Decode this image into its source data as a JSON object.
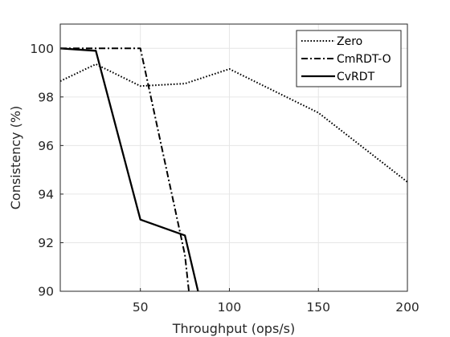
{
  "chart_data": {
    "type": "line",
    "title": "",
    "xlabel": "Throughput (ops/s)",
    "ylabel": "Consistency (%)",
    "xlim": [
      5,
      200
    ],
    "ylim": [
      90,
      101
    ],
    "xticks": [
      50,
      100,
      150,
      200
    ],
    "yticks": [
      90,
      92,
      94,
      96,
      98,
      100
    ],
    "grid": true,
    "legend_position": "top-right",
    "series": [
      {
        "name": "Zero",
        "style": "dotted",
        "color": "#000000",
        "x": [
          5,
          25,
          50,
          75,
          100,
          150,
          200
        ],
        "y": [
          98.65,
          99.35,
          98.45,
          98.55,
          99.15,
          97.35,
          94.5
        ]
      },
      {
        "name": "CmRDT-O",
        "style": "dashdot",
        "color": "#000000",
        "x": [
          5,
          25,
          50,
          75,
          78
        ],
        "y": [
          100.0,
          100.0,
          100.0,
          91.5,
          89.5
        ]
      },
      {
        "name": "CvRDT",
        "style": "solid",
        "color": "#000000",
        "x": [
          5,
          25,
          50,
          75,
          84
        ],
        "y": [
          100.0,
          99.9,
          92.95,
          92.3,
          89.5
        ]
      }
    ]
  }
}
